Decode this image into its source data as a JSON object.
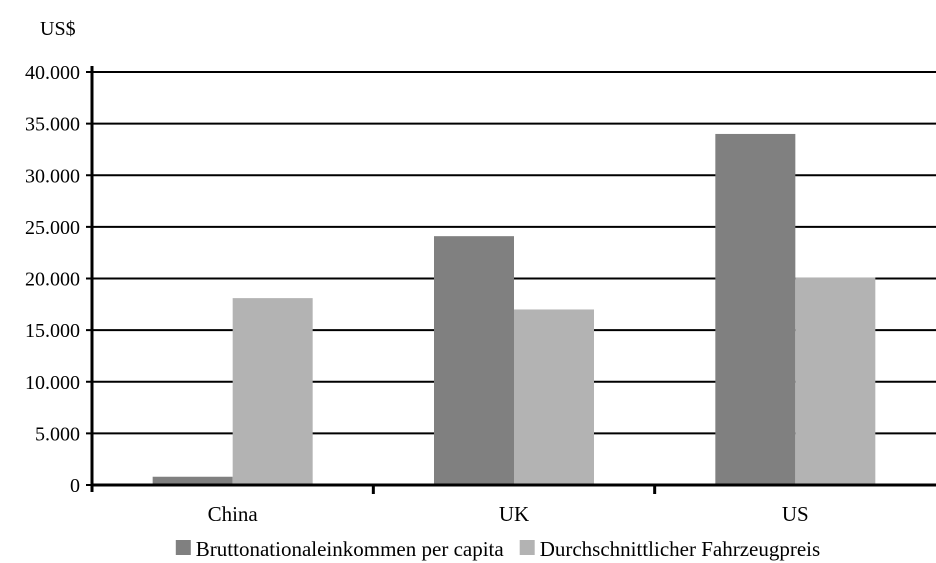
{
  "chart_data": {
    "type": "bar",
    "ylabel": "US$",
    "categories": [
      "China",
      "UK",
      "US"
    ],
    "series": [
      {
        "name": "Bruttonationaleinkommen per capita",
        "color": "#808080",
        "values": [
          800,
          24100,
          34000
        ]
      },
      {
        "name": "Durchschnittlicher Fahrzeugpreis",
        "color": "#b3b3b3",
        "values": [
          18100,
          17000,
          20100
        ]
      }
    ],
    "ylim": [
      0,
      40000
    ],
    "yticks": [
      0,
      5000,
      10000,
      15000,
      20000,
      25000,
      30000,
      35000,
      40000
    ],
    "ytick_labels": [
      "0",
      "5.000",
      "10.000",
      "15.000",
      "20.000",
      "25.000",
      "30.000",
      "35.000",
      "40.000"
    ],
    "grid": true,
    "legend": "bottom"
  }
}
